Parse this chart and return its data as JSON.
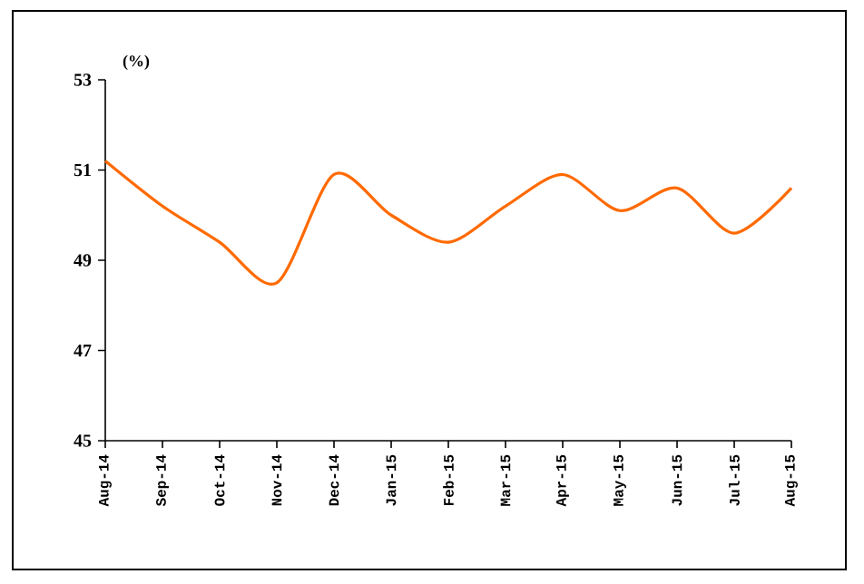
{
  "chart_data": {
    "type": "line",
    "ylabel": "(%)",
    "categories": [
      "Aug-14",
      "Sep-14",
      "Oct-14",
      "Nov-14",
      "Dec-14",
      "Jan-15",
      "Feb-15",
      "Mar-15",
      "Apr-15",
      "May-15",
      "Jun-15",
      "Jul-15",
      "Aug-15"
    ],
    "series": [
      {
        "color": "#ff6a00",
        "values": [
          51.2,
          50.2,
          49.4,
          48.5,
          50.9,
          50.0,
          49.4,
          50.2,
          50.9,
          50.1,
          50.6,
          49.6,
          50.6
        ]
      }
    ],
    "ylim": [
      45,
      53
    ],
    "yticks": [
      45,
      47,
      49,
      51,
      53
    ],
    "grid": false,
    "legend": false,
    "marker": "none",
    "line_style": "solid"
  }
}
